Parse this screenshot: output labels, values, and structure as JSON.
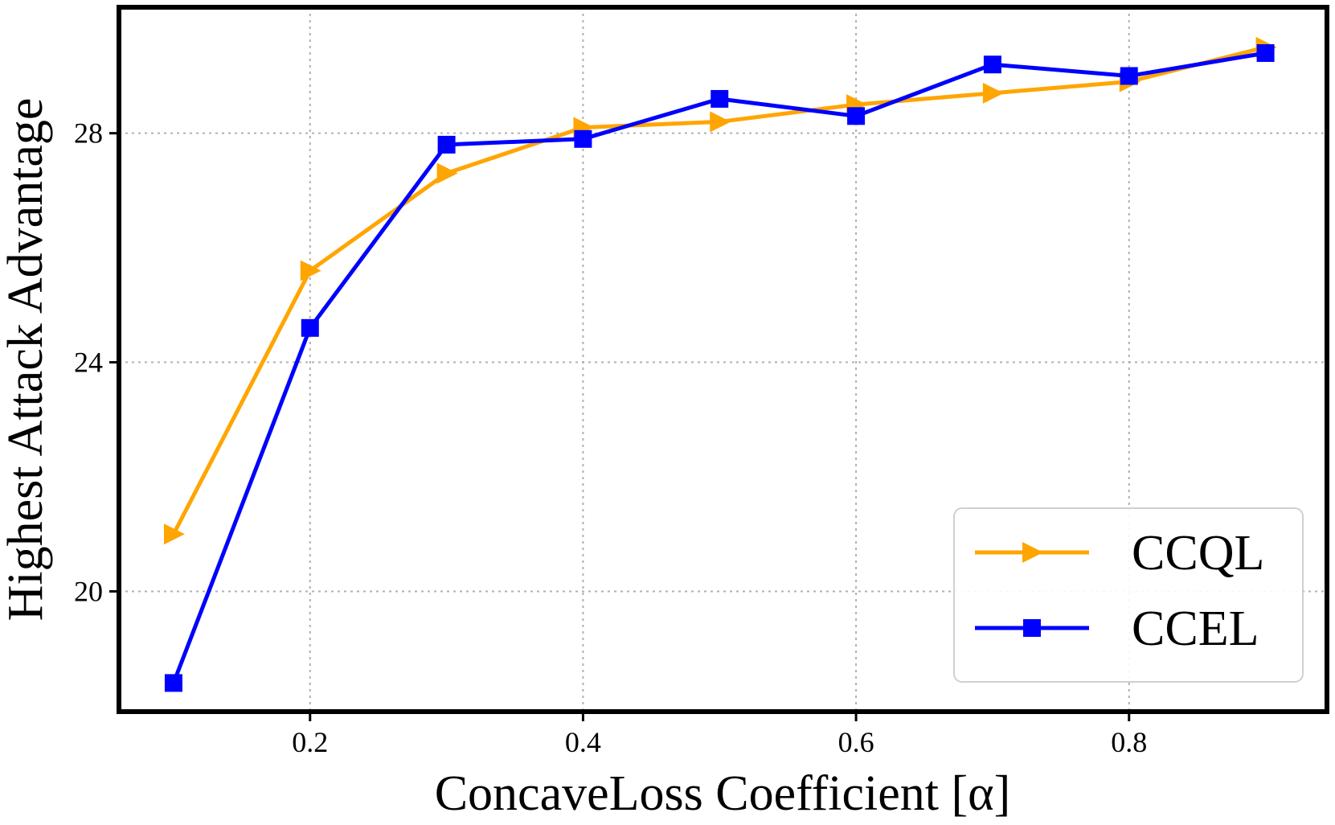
{
  "chart_data": {
    "type": "line",
    "title": "",
    "xlabel": "ConcaveLoss Coefficient [α]",
    "ylabel": "Highest Attack Advantage",
    "x": [
      0.1,
      0.2,
      0.3,
      0.4,
      0.5,
      0.6,
      0.7,
      0.8,
      0.9
    ],
    "xlim": [
      0.06,
      0.945
    ],
    "ylim": [
      17.9,
      30.2
    ],
    "xticks": [
      0.2,
      0.4,
      0.6,
      0.8
    ],
    "xtick_labels": [
      "0.2",
      "0.4",
      "0.6",
      "0.8"
    ],
    "yticks": [
      20,
      24,
      28
    ],
    "ytick_labels": [
      "20",
      "24",
      "28"
    ],
    "grid": true,
    "legend_position": "lower-right",
    "series": [
      {
        "name": "CCQL",
        "color": "#FFA500",
        "marker": "triangle-right",
        "values": [
          21.0,
          25.6,
          27.3,
          28.1,
          28.2,
          28.5,
          28.7,
          28.9,
          29.5
        ]
      },
      {
        "name": "CCEL",
        "color": "#0000FF",
        "marker": "square",
        "values": [
          18.4,
          24.6,
          27.8,
          27.9,
          28.6,
          28.3,
          29.2,
          29.0,
          29.4
        ]
      }
    ]
  }
}
